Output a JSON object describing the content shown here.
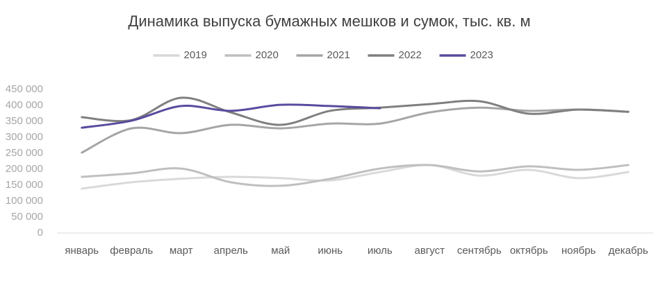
{
  "chart_data": {
    "type": "line",
    "title": "Динамика выпуска бумажных мешков и сумок, тыс. кв. м",
    "categories": [
      "январь",
      "февраль",
      "март",
      "апрель",
      "май",
      "июнь",
      "июль",
      "август",
      "сентябрь",
      "октябрь",
      "ноябрь",
      "декабрь"
    ],
    "series": [
      {
        "name": "2019",
        "color": "#d9d9d9",
        "values": [
          139000,
          159000,
          170000,
          176000,
          172000,
          165000,
          191000,
          213000,
          180000,
          198000,
          172000,
          191000
        ]
      },
      {
        "name": "2020",
        "color": "#bfbfbf",
        "values": [
          176000,
          187000,
          202000,
          159000,
          148000,
          170000,
          202000,
          213000,
          193000,
          209000,
          198000,
          213000
        ]
      },
      {
        "name": "2021",
        "color": "#a5a5a5",
        "values": [
          252000,
          328000,
          313000,
          339000,
          328000,
          343000,
          343000,
          378000,
          393000,
          383000,
          387000,
          380000
        ]
      },
      {
        "name": "2022",
        "color": "#7f7f7f",
        "values": [
          363000,
          354000,
          424000,
          378000,
          339000,
          383000,
          393000,
          404000,
          413000,
          374000,
          387000,
          380000
        ]
      },
      {
        "name": "2023",
        "color": "#5a4a9e",
        "values": [
          330000,
          352000,
          398000,
          383000,
          402000,
          398000,
          391000,
          null,
          null,
          null,
          null,
          null
        ]
      }
    ],
    "ylim": [
      0,
      450000
    ],
    "yticks": [
      {
        "value": 0,
        "label": "0"
      },
      {
        "value": 50000,
        "label": "50 000"
      },
      {
        "value": 100000,
        "label": "100 000"
      },
      {
        "value": 150000,
        "label": "150 000"
      },
      {
        "value": 200000,
        "label": "200 000"
      },
      {
        "value": 250000,
        "label": "250 000"
      },
      {
        "value": 300000,
        "label": "300 000"
      },
      {
        "value": 350000,
        "label": "350 000"
      },
      {
        "value": 400000,
        "label": "400 000"
      },
      {
        "value": 450000,
        "label": "450 000"
      }
    ],
    "legend": "top"
  }
}
